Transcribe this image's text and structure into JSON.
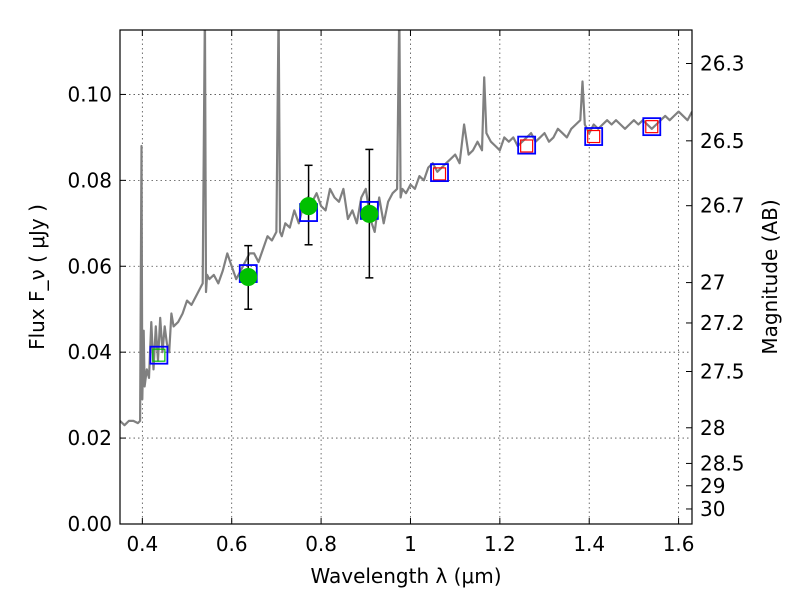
{
  "chart_data": {
    "type": "line",
    "xlabel": "Wavelength  λ (μm)",
    "ylabel": "Flux  F_ν  ( μJy )",
    "ylabel_right": "Magnitude (AB)",
    "xlim": [
      0.35,
      1.63
    ],
    "ylim": [
      0.0,
      0.115
    ],
    "grid": true,
    "x_ticks": [
      0.4,
      0.6,
      0.8,
      1.0,
      1.2,
      1.4,
      1.6
    ],
    "x_tick_labels": [
      "0.4",
      "0.6",
      "0.8",
      "1",
      "1.2",
      "1.4",
      "1.6"
    ],
    "y_ticks": [
      0.0,
      0.02,
      0.04,
      0.06,
      0.08,
      0.1
    ],
    "y_tick_labels": [
      "0.00",
      "0.02",
      "0.04",
      "0.06",
      "0.08",
      "0.10"
    ],
    "right_ticks": [
      {
        "label": "26.3",
        "flux": 0.1072
      },
      {
        "label": "26.5",
        "flux": 0.0892
      },
      {
        "label": "26.7",
        "flux": 0.0741
      },
      {
        "label": "27",
        "flux": 0.0562
      },
      {
        "label": "27.2",
        "flux": 0.0468
      },
      {
        "label": "27.5",
        "flux": 0.0355
      },
      {
        "label": "28",
        "flux": 0.0224
      },
      {
        "label": "28.5",
        "flux": 0.0141
      },
      {
        "label": "29",
        "flux": 0.0089
      },
      {
        "label": "30",
        "flux": 0.0035
      }
    ],
    "spectrum": {
      "color": "#808080",
      "x": [
        0.35,
        0.36,
        0.37,
        0.38,
        0.39,
        0.395,
        0.398,
        0.4,
        0.403,
        0.405,
        0.41,
        0.415,
        0.42,
        0.425,
        0.43,
        0.435,
        0.44,
        0.445,
        0.45,
        0.455,
        0.46,
        0.465,
        0.47,
        0.48,
        0.49,
        0.5,
        0.51,
        0.52,
        0.53,
        0.535,
        0.54,
        0.5425,
        0.545,
        0.55,
        0.56,
        0.57,
        0.58,
        0.59,
        0.6,
        0.61,
        0.62,
        0.63,
        0.64,
        0.65,
        0.66,
        0.67,
        0.68,
        0.69,
        0.7,
        0.705,
        0.708,
        0.712,
        0.72,
        0.73,
        0.74,
        0.75,
        0.76,
        0.77,
        0.78,
        0.79,
        0.8,
        0.81,
        0.82,
        0.83,
        0.84,
        0.85,
        0.86,
        0.87,
        0.88,
        0.89,
        0.9,
        0.91,
        0.92,
        0.93,
        0.94,
        0.95,
        0.96,
        0.97,
        0.975,
        0.978,
        0.982,
        0.99,
        1.0,
        1.01,
        1.02,
        1.03,
        1.04,
        1.05,
        1.06,
        1.07,
        1.08,
        1.09,
        1.1,
        1.11,
        1.12,
        1.13,
        1.14,
        1.15,
        1.16,
        1.165,
        1.17,
        1.18,
        1.19,
        1.2,
        1.21,
        1.22,
        1.23,
        1.24,
        1.25,
        1.26,
        1.27,
        1.28,
        1.29,
        1.3,
        1.31,
        1.32,
        1.33,
        1.34,
        1.35,
        1.36,
        1.37,
        1.38,
        1.385,
        1.39,
        1.4,
        1.41,
        1.42,
        1.43,
        1.44,
        1.45,
        1.46,
        1.47,
        1.48,
        1.49,
        1.5,
        1.51,
        1.52,
        1.53,
        1.54,
        1.55,
        1.56,
        1.57,
        1.58,
        1.59,
        1.6,
        1.61,
        1.62,
        1.63
      ],
      "y": [
        0.024,
        0.023,
        0.024,
        0.024,
        0.0235,
        0.024,
        0.088,
        0.029,
        0.045,
        0.032,
        0.036,
        0.034,
        0.047,
        0.036,
        0.046,
        0.038,
        0.048,
        0.04,
        0.046,
        0.042,
        0.04,
        0.049,
        0.046,
        0.047,
        0.049,
        0.052,
        0.051,
        0.053,
        0.055,
        0.056,
        0.12,
        0.054,
        0.058,
        0.057,
        0.058,
        0.056,
        0.059,
        0.063,
        0.06,
        0.057,
        0.059,
        0.061,
        0.063,
        0.063,
        0.061,
        0.064,
        0.067,
        0.066,
        0.068,
        0.12,
        0.068,
        0.067,
        0.07,
        0.069,
        0.073,
        0.07,
        0.074,
        0.076,
        0.075,
        0.077,
        0.074,
        0.073,
        0.078,
        0.076,
        0.075,
        0.078,
        0.071,
        0.073,
        0.07,
        0.076,
        0.078,
        0.071,
        0.068,
        0.076,
        0.07,
        0.075,
        0.077,
        0.078,
        0.12,
        0.076,
        0.078,
        0.077,
        0.079,
        0.078,
        0.081,
        0.08,
        0.083,
        0.084,
        0.082,
        0.083,
        0.084,
        0.085,
        0.086,
        0.084,
        0.093,
        0.086,
        0.087,
        0.089,
        0.087,
        0.104,
        0.091,
        0.089,
        0.088,
        0.087,
        0.09,
        0.089,
        0.09,
        0.088,
        0.089,
        0.09,
        0.091,
        0.089,
        0.09,
        0.091,
        0.089,
        0.09,
        0.092,
        0.091,
        0.09,
        0.092,
        0.093,
        0.094,
        0.103,
        0.093,
        0.091,
        0.093,
        0.092,
        0.093,
        0.094,
        0.093,
        0.094,
        0.093,
        0.092,
        0.093,
        0.094,
        0.093,
        0.094,
        0.093,
        0.092,
        0.093,
        0.094,
        0.095,
        0.094,
        0.095,
        0.096,
        0.095,
        0.094,
        0.096
      ]
    },
    "model_squares_blue": {
      "color": "#0000ff",
      "x": [
        0.437,
        0.637,
        0.772,
        0.908,
        1.065,
        1.26,
        1.41,
        1.54
      ],
      "y": [
        0.0393,
        0.0583,
        0.0725,
        0.073,
        0.0818,
        0.0882,
        0.0902,
        0.0925
      ]
    },
    "photometry_squares_red": {
      "color": "#ff0000",
      "x": [
        1.065,
        1.26,
        1.41,
        1.54
      ],
      "y": [
        0.0815,
        0.088,
        0.0902,
        0.0925
      ]
    },
    "photometry_squares_green": {
      "color": "#00c000",
      "x": [
        0.437
      ],
      "y": [
        0.0393
      ]
    },
    "observed_points": {
      "color": "#00c000",
      "x": [
        0.637,
        0.772,
        0.908
      ],
      "y": [
        0.0575,
        0.074,
        0.0722
      ],
      "err_low": [
        0.05,
        0.065,
        0.0573
      ],
      "err_high": [
        0.0648,
        0.0835,
        0.0872
      ]
    }
  }
}
